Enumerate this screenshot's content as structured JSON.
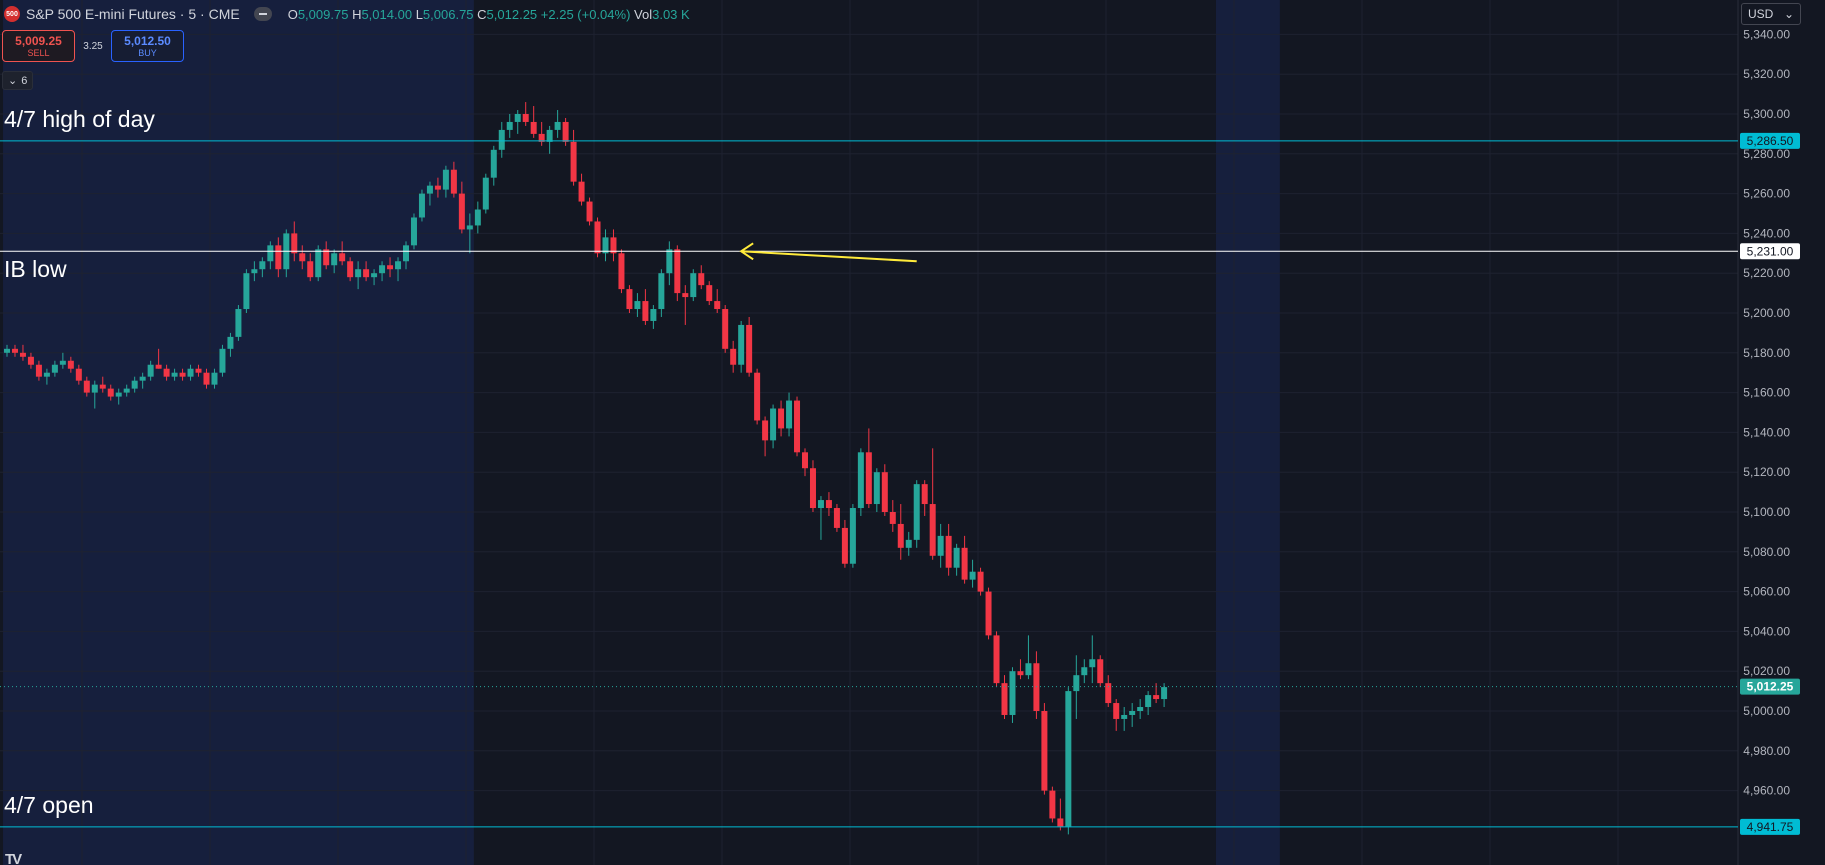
{
  "header": {
    "logo_text": "500",
    "symbol_title": "S&P 500 E-mini Futures · 5 · CME",
    "ohlc": {
      "o_label": "O",
      "o_value": "5,009.75",
      "h_label": "H",
      "h_value": "5,014.00",
      "l_label": "L",
      "l_value": "5,006.75",
      "c_label": "C",
      "c_value": "5,012.25",
      "change": "+2.25 (+0.04%)",
      "vol_label": "Vol",
      "vol_value": "3.03 K"
    }
  },
  "trade": {
    "sell_price": "5,009.25",
    "sell_label": "SELL",
    "spread": "3.25",
    "buy_price": "5,012.50",
    "buy_label": "BUY"
  },
  "indicators_toggle": {
    "count": "6"
  },
  "currency": {
    "selected": "USD"
  },
  "colors": {
    "background": "#131722",
    "session_shade": "#172142",
    "up": "#26a69a",
    "down": "#f23645",
    "cyan_line": "#00bcd4",
    "white_line": "#ffffff",
    "arrow": "#ffeb3b"
  },
  "annotations": {
    "high_of_day": "4/7 high of day",
    "ib_low": "IB low",
    "open": "4/7 open"
  },
  "chart_data": {
    "type": "candlestick",
    "symbol": "S&P 500 E-mini Futures",
    "interval": "5",
    "y_range": [
      4941,
      5345
    ],
    "y_ticks": [
      4960,
      4980,
      5000,
      5020,
      5040,
      5060,
      5080,
      5100,
      5120,
      5140,
      5160,
      5180,
      5200,
      5220,
      5240,
      5260,
      5280,
      5300,
      5320,
      5340
    ],
    "horizontal_lines": [
      {
        "price": 5286.5,
        "label": "5,286.50",
        "color": "#00bcd4",
        "annotation": "4/7 high of day"
      },
      {
        "price": 5231.0,
        "label": "5,231.00",
        "color": "#ffffff",
        "annotation": "IB low"
      },
      {
        "price": 4941.75,
        "label": "4,941.75",
        "color": "#00bcd4",
        "annotation": "4/7 open"
      }
    ],
    "last_price": {
      "price": 5012.25,
      "label": "5,012.25"
    },
    "arrow": {
      "from_bar": 114,
      "from_price": 5226,
      "to_bar": 92,
      "to_price": 5231
    },
    "session_shading": [
      {
        "start_bar": 0,
        "end_bar": 59
      },
      {
        "start_bar": 152,
        "end_bar": 160
      }
    ],
    "candles": [
      [
        5180,
        5184,
        5178,
        5182
      ],
      [
        5182,
        5184,
        5178,
        5180
      ],
      [
        5180,
        5184,
        5176,
        5178
      ],
      [
        5178,
        5180,
        5172,
        5174
      ],
      [
        5174,
        5176,
        5166,
        5168
      ],
      [
        5168,
        5172,
        5164,
        5170
      ],
      [
        5170,
        5176,
        5168,
        5174
      ],
      [
        5174,
        5180,
        5172,
        5176
      ],
      [
        5176,
        5178,
        5170,
        5172
      ],
      [
        5172,
        5174,
        5164,
        5166
      ],
      [
        5166,
        5168,
        5158,
        5160
      ],
      [
        5160,
        5166,
        5152,
        5164
      ],
      [
        5164,
        5168,
        5160,
        5162
      ],
      [
        5162,
        5164,
        5156,
        5158
      ],
      [
        5158,
        5162,
        5154,
        5160
      ],
      [
        5160,
        5164,
        5158,
        5162
      ],
      [
        5162,
        5168,
        5160,
        5166
      ],
      [
        5166,
        5170,
        5162,
        5168
      ],
      [
        5168,
        5176,
        5166,
        5174
      ],
      [
        5174,
        5182,
        5172,
        5172
      ],
      [
        5172,
        5174,
        5166,
        5168
      ],
      [
        5168,
        5172,
        5166,
        5170
      ],
      [
        5170,
        5172,
        5166,
        5168
      ],
      [
        5168,
        5174,
        5166,
        5172
      ],
      [
        5172,
        5174,
        5168,
        5170
      ],
      [
        5170,
        5172,
        5162,
        5164
      ],
      [
        5164,
        5172,
        5162,
        5170
      ],
      [
        5170,
        5184,
        5168,
        5182
      ],
      [
        5182,
        5190,
        5178,
        5188
      ],
      [
        5188,
        5204,
        5186,
        5202
      ],
      [
        5202,
        5222,
        5200,
        5220
      ],
      [
        5220,
        5226,
        5216,
        5222
      ],
      [
        5222,
        5228,
        5218,
        5226
      ],
      [
        5226,
        5236,
        5222,
        5234
      ],
      [
        5234,
        5238,
        5218,
        5222
      ],
      [
        5222,
        5242,
        5218,
        5240
      ],
      [
        5240,
        5246,
        5226,
        5230
      ],
      [
        5230,
        5234,
        5222,
        5226
      ],
      [
        5226,
        5230,
        5216,
        5218
      ],
      [
        5218,
        5234,
        5216,
        5232
      ],
      [
        5232,
        5236,
        5222,
        5224
      ],
      [
        5224,
        5232,
        5220,
        5230
      ],
      [
        5230,
        5236,
        5224,
        5226
      ],
      [
        5226,
        5228,
        5216,
        5218
      ],
      [
        5218,
        5226,
        5212,
        5222
      ],
      [
        5222,
        5226,
        5216,
        5218
      ],
      [
        5218,
        5222,
        5214,
        5220
      ],
      [
        5220,
        5226,
        5216,
        5224
      ],
      [
        5224,
        5228,
        5218,
        5222
      ],
      [
        5222,
        5228,
        5216,
        5226
      ],
      [
        5226,
        5236,
        5222,
        5234
      ],
      [
        5234,
        5250,
        5232,
        5248
      ],
      [
        5248,
        5262,
        5246,
        5260
      ],
      [
        5260,
        5266,
        5254,
        5264
      ],
      [
        5264,
        5268,
        5258,
        5262
      ],
      [
        5262,
        5274,
        5258,
        5272
      ],
      [
        5272,
        5276,
        5258,
        5260
      ],
      [
        5260,
        5266,
        5240,
        5242
      ],
      [
        5242,
        5250,
        5230,
        5244
      ],
      [
        5244,
        5256,
        5240,
        5252
      ],
      [
        5252,
        5270,
        5250,
        5268
      ],
      [
        5268,
        5284,
        5264,
        5282
      ],
      [
        5282,
        5296,
        5278,
        5292
      ],
      [
        5292,
        5300,
        5288,
        5296
      ],
      [
        5296,
        5302,
        5290,
        5300
      ],
      [
        5300,
        5306,
        5294,
        5296
      ],
      [
        5296,
        5304,
        5288,
        5290
      ],
      [
        5290,
        5296,
        5284,
        5286
      ],
      [
        5286,
        5294,
        5280,
        5292
      ],
      [
        5292,
        5302,
        5288,
        5296
      ],
      [
        5296,
        5298,
        5284,
        5286
      ],
      [
        5286,
        5292,
        5264,
        5266
      ],
      [
        5266,
        5270,
        5254,
        5256
      ],
      [
        5256,
        5258,
        5244,
        5246
      ],
      [
        5246,
        5248,
        5228,
        5230
      ],
      [
        5230,
        5242,
        5226,
        5238
      ],
      [
        5238,
        5242,
        5226,
        5230
      ],
      [
        5230,
        5232,
        5210,
        5212
      ],
      [
        5212,
        5214,
        5200,
        5202
      ],
      [
        5202,
        5210,
        5198,
        5206
      ],
      [
        5206,
        5212,
        5194,
        5196
      ],
      [
        5196,
        5204,
        5192,
        5202
      ],
      [
        5202,
        5222,
        5198,
        5220
      ],
      [
        5220,
        5236,
        5214,
        5232
      ],
      [
        5232,
        5234,
        5206,
        5210
      ],
      [
        5210,
        5214,
        5194,
        5208
      ],
      [
        5208,
        5222,
        5206,
        5220
      ],
      [
        5220,
        5224,
        5212,
        5214
      ],
      [
        5214,
        5216,
        5204,
        5206
      ],
      [
        5206,
        5212,
        5200,
        5202
      ],
      [
        5202,
        5204,
        5180,
        5182
      ],
      [
        5182,
        5186,
        5170,
        5174
      ],
      [
        5174,
        5196,
        5170,
        5194
      ],
      [
        5194,
        5198,
        5168,
        5170
      ],
      [
        5170,
        5172,
        5144,
        5146
      ],
      [
        5146,
        5148,
        5128,
        5136
      ],
      [
        5136,
        5154,
        5132,
        5152
      ],
      [
        5152,
        5156,
        5138,
        5142
      ],
      [
        5142,
        5160,
        5138,
        5156
      ],
      [
        5156,
        5158,
        5128,
        5130
      ],
      [
        5130,
        5132,
        5118,
        5122
      ],
      [
        5122,
        5126,
        5100,
        5102
      ],
      [
        5102,
        5108,
        5086,
        5106
      ],
      [
        5106,
        5110,
        5098,
        5102
      ],
      [
        5102,
        5104,
        5090,
        5092
      ],
      [
        5092,
        5096,
        5072,
        5074
      ],
      [
        5074,
        5104,
        5072,
        5102
      ],
      [
        5102,
        5132,
        5098,
        5130
      ],
      [
        5130,
        5142,
        5102,
        5104
      ],
      [
        5104,
        5122,
        5100,
        5120
      ],
      [
        5120,
        5124,
        5098,
        5100
      ],
      [
        5100,
        5106,
        5090,
        5094
      ],
      [
        5094,
        5104,
        5076,
        5082
      ],
      [
        5082,
        5090,
        5078,
        5086
      ],
      [
        5086,
        5116,
        5082,
        5114
      ],
      [
        5114,
        5116,
        5098,
        5104
      ],
      [
        5104,
        5132,
        5076,
        5078
      ],
      [
        5078,
        5094,
        5072,
        5088
      ],
      [
        5088,
        5094,
        5068,
        5072
      ],
      [
        5072,
        5084,
        5068,
        5082
      ],
      [
        5082,
        5088,
        5064,
        5066
      ],
      [
        5066,
        5076,
        5062,
        5070
      ],
      [
        5070,
        5072,
        5058,
        5060
      ],
      [
        5060,
        5062,
        5036,
        5038
      ],
      [
        5038,
        5040,
        5012,
        5014
      ],
      [
        5014,
        5018,
        4996,
        4998
      ],
      [
        4998,
        5022,
        4994,
        5020
      ],
      [
        5020,
        5026,
        5016,
        5018
      ],
      [
        5018,
        5038,
        5016,
        5024
      ],
      [
        5024,
        5030,
        4996,
        5000
      ],
      [
        5000,
        5004,
        4958,
        4960
      ],
      [
        4960,
        4962,
        4944,
        4946
      ],
      [
        4946,
        4956,
        4940,
        4942
      ],
      [
        4942,
        5012,
        4938,
        5010
      ],
      [
        5010,
        5028,
        4996,
        5018
      ],
      [
        5018,
        5026,
        5014,
        5022
      ],
      [
        5022,
        5038,
        5014,
        5026
      ],
      [
        5026,
        5028,
        5012,
        5014
      ],
      [
        5014,
        5018,
        5002,
        5004
      ],
      [
        5004,
        5006,
        4990,
        4996
      ],
      [
        4996,
        5002,
        4990,
        4998
      ],
      [
        4998,
        5004,
        4992,
        5000
      ],
      [
        5000,
        5006,
        4996,
        5002
      ],
      [
        5002,
        5010,
        4998,
        5008
      ],
      [
        5008,
        5014,
        5004,
        5006
      ],
      [
        5006,
        5014,
        5002,
        5012
      ]
    ]
  }
}
